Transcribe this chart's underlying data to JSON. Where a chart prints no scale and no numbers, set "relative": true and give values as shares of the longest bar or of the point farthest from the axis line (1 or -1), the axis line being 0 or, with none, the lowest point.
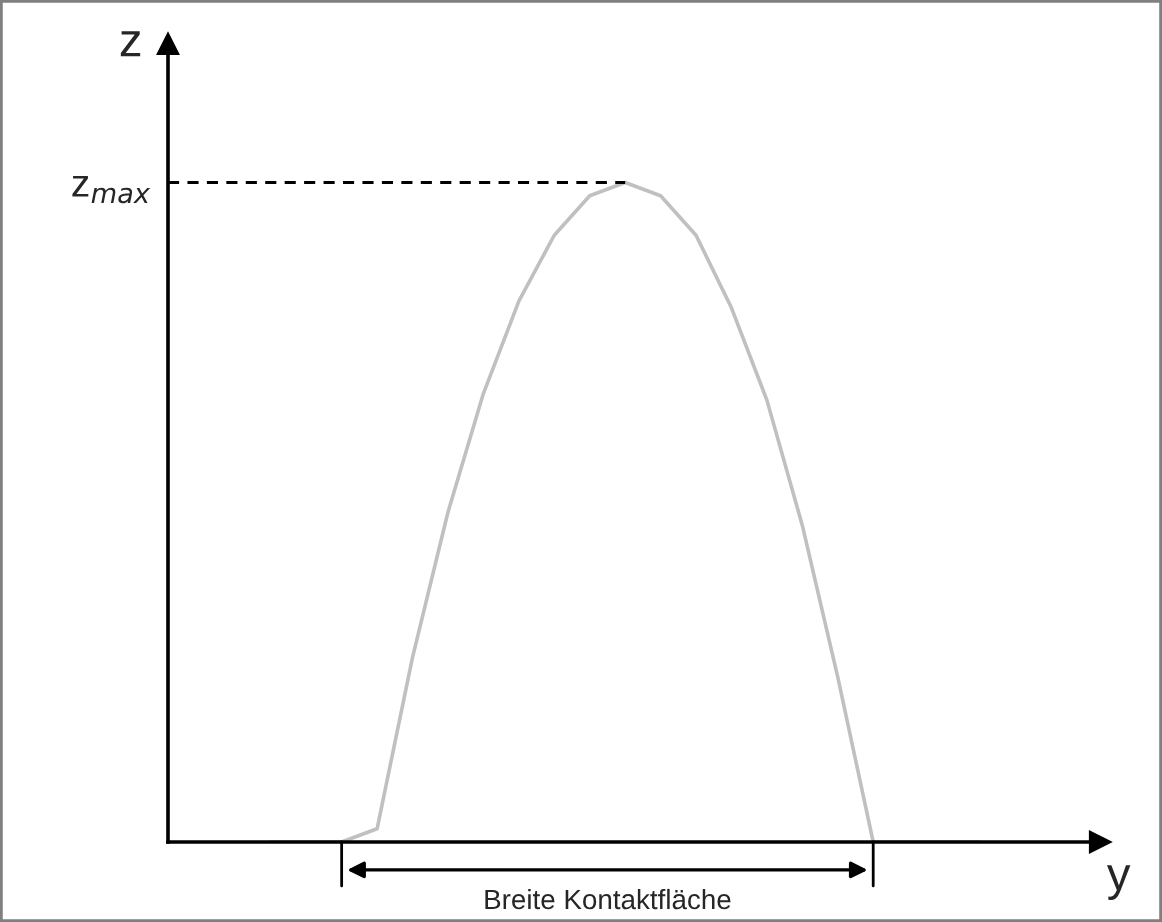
{
  "chart_data": {
    "type": "line",
    "relative": true,
    "xlabel": "y",
    "ylabel": "z",
    "categories": [
      null,
      null,
      null,
      null,
      null,
      null,
      null,
      null,
      null,
      null,
      null,
      null,
      null,
      null,
      null,
      null,
      null,
      null,
      null,
      null,
      null
    ],
    "series": [
      {
        "color": "#c0c0c0",
        "values": [
          0,
          0,
          0,
          0.02,
          0.28,
          0.5,
          0.68,
          0.82,
          0.92,
          0.98,
          1.0,
          0.98,
          0.92,
          0.81,
          0.67,
          0.48,
          0.25,
          0,
          0,
          0,
          0
        ]
      }
    ],
    "ref_lines": [
      {
        "axis": "y",
        "value": 1,
        "label": "z$_{max}$",
        "color": "#000000",
        "line_style": "dashed"
      }
    ],
    "annotations": [
      "Breite Kontaktfläche"
    ],
    "grid": false,
    "legend": false
  }
}
